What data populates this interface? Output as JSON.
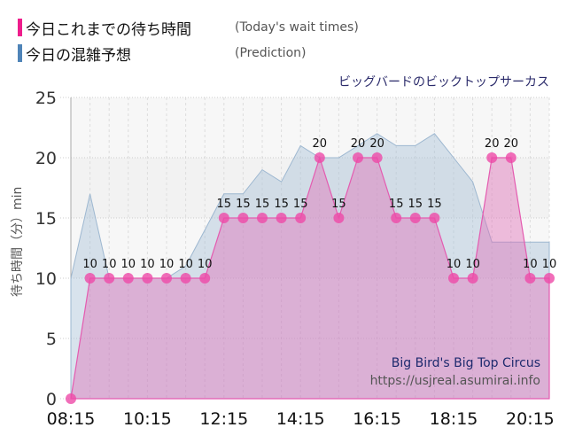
{
  "legend": [
    {
      "label_jp": "今日これまでの待ち時間",
      "label_en": "(Today's wait times)",
      "color": "#ee1d8c"
    },
    {
      "label_jp": "今日の混雑予想",
      "label_en": "(Prediction)",
      "color": "#4f84b8"
    }
  ],
  "subtitle": "ビッグバードのビックトップサーカス",
  "watermark": {
    "title": "Big Bird's Big Top Circus",
    "url": "https://usjreal.asumirai.info"
  },
  "chart_data": {
    "type": "area",
    "title": "ビッグバードのビックトップサーカス",
    "xlabel": "",
    "ylabel": "待ち時間（分）min",
    "ylim": [
      0,
      25
    ],
    "yticks": [
      0,
      5,
      10,
      15,
      20,
      25
    ],
    "xtick_labels": [
      "08:15",
      "10:15",
      "12:15",
      "14:15",
      "16:15",
      "18:15",
      "20:15"
    ],
    "x": [
      "08:15",
      "08:45",
      "09:15",
      "09:45",
      "10:15",
      "10:45",
      "11:15",
      "11:45",
      "12:15",
      "12:45",
      "13:15",
      "13:45",
      "14:15",
      "14:45",
      "15:15",
      "15:45",
      "16:15",
      "16:45",
      "17:15",
      "17:45",
      "18:15",
      "18:45",
      "19:15",
      "19:45",
      "20:15",
      "20:45"
    ],
    "series": [
      {
        "name": "Today's wait times",
        "color": "#ee1d8c",
        "values": [
          0,
          10,
          10,
          10,
          10,
          10,
          10,
          10,
          15,
          15,
          15,
          15,
          15,
          20,
          15,
          20,
          20,
          15,
          15,
          15,
          10,
          10,
          20,
          20,
          10,
          10
        ]
      },
      {
        "name": "Prediction",
        "color": "#4f84b8",
        "values": [
          10,
          17,
          10,
          10,
          10,
          10,
          11,
          14,
          17,
          17,
          19,
          18,
          21,
          20,
          20,
          21,
          22,
          21,
          21,
          22,
          20,
          18,
          13,
          13,
          13,
          13
        ]
      }
    ],
    "grid": true,
    "legend_position": "top-left"
  }
}
